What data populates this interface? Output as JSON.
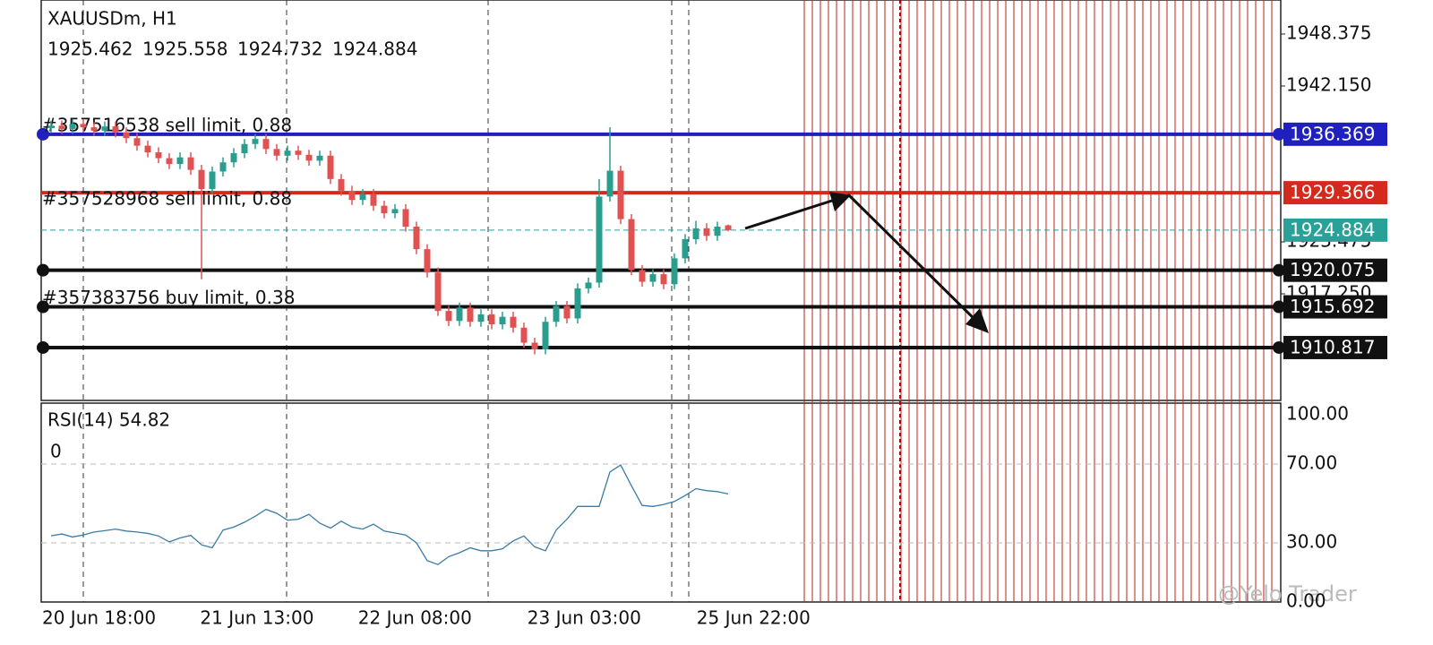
{
  "chart_data": {
    "type": "candlestick",
    "title": "XAUUSDm, H1",
    "ohlc": [
      1925.462,
      1925.558,
      1924.732,
      1924.884
    ],
    "categories": [
      "20 Jun 18:00",
      null,
      null,
      null,
      null,
      null,
      null,
      null,
      null,
      null,
      null,
      null,
      null,
      null,
      "21 Jun 13:00",
      null,
      null,
      null,
      null,
      null,
      null,
      null,
      null,
      null,
      null,
      null,
      null,
      null,
      "22 Jun 08:00",
      null,
      null,
      null,
      null,
      null,
      null,
      null,
      null,
      null,
      null,
      null,
      null,
      null,
      null,
      "23 Jun 03:00",
      null,
      null,
      null,
      null,
      null,
      null,
      null,
      null,
      null,
      null,
      null,
      null,
      null,
      null,
      "25 Jun 22:00",
      null,
      null,
      null,
      null,
      null
    ],
    "open": [
      1937.1,
      1937.4,
      1937.0,
      1937.6,
      1937.2,
      1936.8,
      1937.3,
      1936.6,
      1935.9,
      1935.0,
      1934.2,
      1933.5,
      1932.8,
      1933.6,
      1932.1,
      1929.8,
      1931.9,
      1933.0,
      1934.1,
      1935.2,
      1935.8,
      1934.6,
      1933.8,
      1934.4,
      1933.9,
      1933.2,
      1933.8,
      1931.0,
      1929.6,
      1928.5,
      1929.2,
      1927.8,
      1926.9,
      1927.4,
      1925.3,
      1922.6,
      1919.8,
      1915.2,
      1914.0,
      1915.6,
      1913.9,
      1914.8,
      1913.6,
      1914.5,
      1913.2,
      1911.4,
      1910.6,
      1913.9,
      1915.8,
      1914.3,
      1917.9,
      1918.6,
      1928.9,
      1932.0,
      1926.2,
      1920.1,
      1918.7,
      1919.6,
      1918.4,
      1921.5,
      1923.8,
      1925.1,
      1924.2,
      1925.462
    ],
    "high": [
      1938.0,
      1938.0,
      1938.2,
      1938.2,
      1937.8,
      1937.9,
      1937.9,
      1937.2,
      1936.5,
      1935.6,
      1934.8,
      1934.1,
      1934.2,
      1934.2,
      1932.7,
      1932.5,
      1933.6,
      1934.7,
      1935.8,
      1936.4,
      1936.4,
      1935.2,
      1935.0,
      1935.0,
      1934.5,
      1934.4,
      1934.4,
      1931.6,
      1930.2,
      1929.8,
      1929.8,
      1928.4,
      1928.0,
      1928.0,
      1925.9,
      1923.2,
      1920.4,
      1915.8,
      1916.2,
      1916.2,
      1915.4,
      1915.4,
      1915.1,
      1915.1,
      1913.8,
      1912.0,
      1914.5,
      1916.4,
      1916.4,
      1918.5,
      1919.2,
      1931.0,
      1937.2,
      1932.6,
      1926.8,
      1920.7,
      1920.2,
      1920.2,
      1922.1,
      1924.4,
      1926.0,
      1925.7,
      1925.9,
      1925.558
    ],
    "low": [
      1936.5,
      1936.4,
      1936.4,
      1936.6,
      1936.2,
      1936.2,
      1936.0,
      1935.3,
      1934.4,
      1933.6,
      1932.9,
      1932.2,
      1932.2,
      1931.5,
      1919.0,
      1929.2,
      1931.3,
      1932.4,
      1933.5,
      1934.6,
      1934.0,
      1933.2,
      1933.2,
      1933.3,
      1932.6,
      1932.6,
      1930.4,
      1929.0,
      1927.9,
      1927.9,
      1927.2,
      1926.3,
      1926.3,
      1924.7,
      1922.0,
      1919.2,
      1914.6,
      1913.4,
      1913.4,
      1913.3,
      1913.3,
      1913.0,
      1913.0,
      1912.6,
      1910.8,
      1910.0,
      1910.0,
      1913.3,
      1913.7,
      1913.7,
      1917.3,
      1918.0,
      1928.3,
      1925.6,
      1919.5,
      1918.1,
      1918.1,
      1917.8,
      1917.8,
      1920.9,
      1923.2,
      1923.6,
      1923.6,
      1924.732
    ],
    "close": [
      1937.4,
      1937.0,
      1937.6,
      1937.2,
      1936.8,
      1937.3,
      1936.6,
      1935.9,
      1935.0,
      1934.2,
      1933.5,
      1932.8,
      1933.6,
      1932.1,
      1929.8,
      1931.9,
      1933.0,
      1934.1,
      1935.2,
      1935.8,
      1934.6,
      1933.8,
      1934.4,
      1933.9,
      1933.2,
      1933.8,
      1931.0,
      1929.6,
      1928.5,
      1929.2,
      1927.8,
      1926.9,
      1927.4,
      1925.3,
      1922.6,
      1919.8,
      1915.2,
      1914.0,
      1915.6,
      1913.9,
      1914.8,
      1913.6,
      1914.5,
      1913.2,
      1911.4,
      1910.6,
      1913.9,
      1915.8,
      1914.3,
      1917.9,
      1918.6,
      1928.9,
      1932.0,
      1926.2,
      1920.1,
      1918.7,
      1919.6,
      1918.4,
      1921.5,
      1923.8,
      1925.1,
      1924.2,
      1925.3,
      1924.884
    ],
    "up_color": "#2a9d8f",
    "down_color": "#e05252",
    "ylim": [
      1904.48,
      1952.45
    ],
    "yticks": [
      1948.375,
      {
        "value": 1942.15,
        "label": "1942.150"
      },
      1923.475,
      {
        "value": 1917.25,
        "label": "1917.250"
      }
    ],
    "levels": [
      {
        "value": 1936.369,
        "color": "#2020c0",
        "order": "#357516538 sell limit, 0.88"
      },
      {
        "value": 1929.366,
        "color": "#d42a1e",
        "order": "#357528968 sell limit, 0.88"
      },
      {
        "value": 1924.884,
        "color": "#2aa198"
      },
      {
        "value": 1920.075,
        "color": "#111111"
      },
      {
        "value": 1915.692,
        "color": "#111111",
        "order": "#357383756 buy limit, 0.38"
      },
      {
        "value": 1910.817,
        "color": "#111111"
      }
    ],
    "rsi": {
      "label": "RSI(14) 54.82",
      "sublabel": "0",
      "color": "#3a7ca5",
      "values": [
        33.6,
        34.5,
        33.0,
        34.0,
        35.5,
        36.2,
        37.0,
        36.0,
        35.5,
        34.8,
        33.5,
        30.5,
        32.5,
        33.8,
        29.0,
        27.5,
        36.5,
        38.0,
        40.5,
        43.5,
        47.0,
        45.0,
        41.5,
        42.0,
        44.5,
        40.0,
        37.5,
        41.0,
        38.0,
        37.0,
        39.5,
        36.0,
        35.0,
        34.0,
        30.0,
        21.0,
        19.0,
        23.0,
        25.0,
        27.5,
        26.0,
        26.0,
        27.0,
        31.0,
        33.5,
        28.0,
        26.0,
        36.5,
        42.0,
        48.5,
        48.5,
        48.5,
        66.0,
        69.5,
        59.0,
        49.0,
        48.5,
        49.5,
        51.0,
        54.0,
        57.5,
        56.5,
        56.0,
        54.82
      ],
      "ylim": [
        0,
        100
      ],
      "yticks": [
        {
          "value": 100,
          "label": "100.00"
        },
        {
          "value": 70,
          "label": "70.00"
        },
        {
          "value": 30,
          "label": "30.00"
        },
        {
          "value": 0,
          "label": "0.00"
        }
      ]
    },
    "watermark": "@Yelo Trader"
  }
}
